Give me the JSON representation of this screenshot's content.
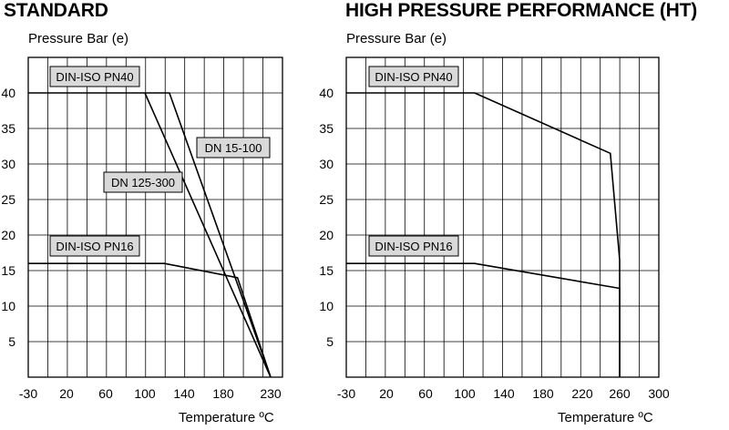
{
  "chart_data": [
    {
      "type": "line",
      "title": "STANDARD",
      "ylabel": "Pressure Bar (e)",
      "xlabel": "Temperature ºC",
      "x_ticks": [
        "-30",
        "20",
        "60",
        "100",
        "140",
        "180",
        "230"
      ],
      "y_ticks": [
        "5",
        "10",
        "15",
        "20",
        "25",
        "30",
        "35",
        "40"
      ],
      "ylim": [
        0,
        45
      ],
      "grid": true,
      "series": [
        {
          "name": "DIN-ISO PN40",
          "points": [
            [
              -30,
              40
            ],
            [
              100,
              40
            ]
          ]
        },
        {
          "name": "DN 15-100",
          "points": [
            [
              100,
              40
            ],
            [
              125,
              40
            ],
            [
              230,
              0
            ]
          ]
        },
        {
          "name": "DN 125-300",
          "points": [
            [
              100,
              40
            ],
            [
              230,
              0
            ]
          ]
        },
        {
          "name": "DIN-ISO PN16",
          "points": [
            [
              -30,
              16
            ],
            [
              120,
              16
            ],
            [
              195,
              14
            ],
            [
              230,
              0
            ]
          ]
        }
      ],
      "annotations": [
        "DIN-ISO PN40",
        "DN 15-100",
        "DN 125-300",
        "DIN-ISO PN16"
      ]
    },
    {
      "type": "line",
      "title": "HIGH PRESSURE PERFORMANCE (HT)",
      "ylabel": "Pressure Bar (e)",
      "xlabel": "Temperature ºC",
      "x_ticks": [
        "-30",
        "20",
        "60",
        "100",
        "140",
        "180",
        "220",
        "260",
        "300"
      ],
      "y_ticks": [
        "5",
        "10",
        "15",
        "20",
        "25",
        "30",
        "35",
        "40"
      ],
      "ylim": [
        0,
        45
      ],
      "grid": true,
      "series": [
        {
          "name": "DIN-ISO PN40",
          "points": [
            [
              -30,
              40
            ],
            [
              110,
              40
            ],
            [
              250,
              31.5
            ],
            [
              260,
              16.5
            ],
            [
              260,
              0
            ]
          ]
        },
        {
          "name": "DIN-ISO PN16",
          "points": [
            [
              -30,
              16
            ],
            [
              110,
              16
            ],
            [
              260,
              12.5
            ],
            [
              260,
              0
            ]
          ]
        }
      ],
      "annotations": [
        "DIN-ISO PN40",
        "DIN-ISO PN16"
      ]
    }
  ]
}
